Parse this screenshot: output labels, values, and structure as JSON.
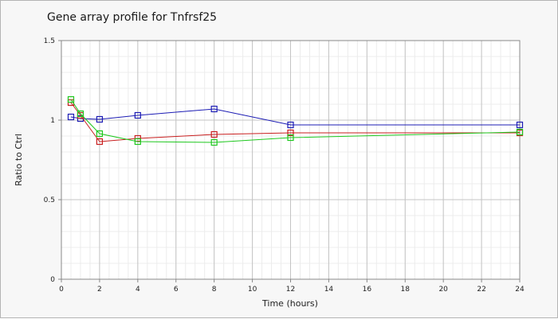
{
  "chart_data": {
    "type": "line",
    "title": "Gene array profile for Tnfrsf25",
    "xlabel": "Time (hours)",
    "ylabel": "Ratio to Ctrl",
    "xlim": [
      0,
      24
    ],
    "ylim": [
      0,
      1.5
    ],
    "x_ticks": [
      "0",
      "2",
      "4",
      "6",
      "8",
      "10",
      "12",
      "14",
      "16",
      "18",
      "20",
      "22",
      "24"
    ],
    "y_ticks": [
      "0",
      "0.5",
      "1",
      "1.5"
    ],
    "grid": true,
    "legend": "none",
    "series": [
      {
        "color": "#1c1cb4",
        "points": [
          [
            0.5,
            1.02
          ],
          [
            1,
            1.01
          ],
          [
            2,
            1.005
          ],
          [
            4,
            1.03
          ],
          [
            8,
            1.07
          ],
          [
            12,
            0.97
          ],
          [
            24,
            0.97
          ]
        ]
      },
      {
        "color": "#c81e1e",
        "points": [
          [
            0.5,
            1.11
          ],
          [
            1,
            1.03
          ],
          [
            2,
            0.865
          ],
          [
            4,
            0.885
          ],
          [
            8,
            0.91
          ],
          [
            12,
            0.92
          ],
          [
            24,
            0.92
          ]
        ]
      },
      {
        "color": "#1ec81e",
        "points": [
          [
            0.5,
            1.13
          ],
          [
            1,
            1.04
          ],
          [
            2,
            0.915
          ],
          [
            4,
            0.865
          ],
          [
            8,
            0.86
          ],
          [
            12,
            0.89
          ],
          [
            24,
            0.925
          ]
        ]
      }
    ]
  }
}
